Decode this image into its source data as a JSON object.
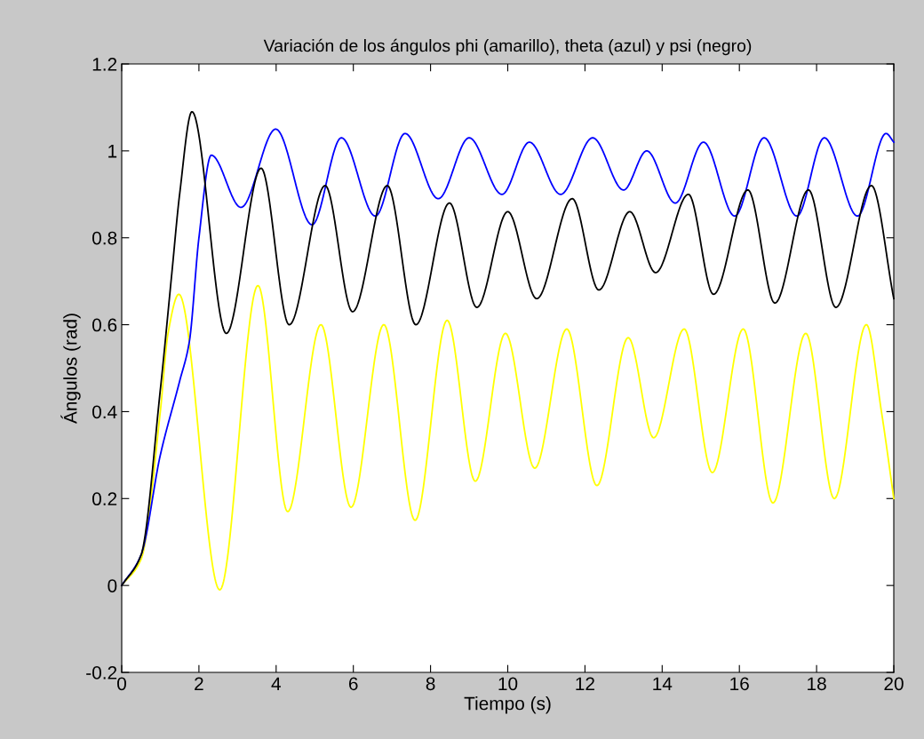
{
  "chart_data": {
    "type": "line",
    "title": "Variación de los ángulos phi (amarillo), theta (azul) y psi (negro)",
    "xlabel": "Tiempo (s)",
    "ylabel": "Ángulos (rad)",
    "xlim": [
      0,
      20
    ],
    "ylim": [
      -0.2,
      1.2
    ],
    "xticks": [
      0,
      2,
      4,
      6,
      8,
      10,
      12,
      14,
      16,
      18,
      20
    ],
    "yticks": [
      -0.2,
      0,
      0.2,
      0.4,
      0.6,
      0.8,
      1,
      1.2
    ],
    "grid": false,
    "legend": false,
    "marker": "none",
    "line_style": "solid",
    "series": [
      {
        "color": "#ffff00",
        "x": [
          0,
          0.5,
          1.0,
          1.2,
          1.48,
          2.54,
          3.53,
          4.3,
          5.16,
          5.94,
          6.79,
          7.6,
          8.43,
          9.16,
          9.94,
          10.7,
          11.53,
          12.31,
          13.12,
          13.78,
          14.57,
          15.3,
          16.1,
          16.87,
          17.72,
          18.46,
          19.29,
          19.68,
          20
        ],
        "values": [
          0,
          0.06,
          0.4,
          0.58,
          0.67,
          -0.01,
          0.69,
          0.17,
          0.6,
          0.18,
          0.6,
          0.15,
          0.61,
          0.24,
          0.58,
          0.27,
          0.59,
          0.23,
          0.57,
          0.34,
          0.59,
          0.26,
          0.59,
          0.19,
          0.58,
          0.2,
          0.6,
          0.4,
          0.2
        ]
      },
      {
        "color": "#0000ff",
        "x": [
          0,
          0.5,
          1.0,
          1.5,
          1.75,
          2.0,
          2.32,
          3.09,
          3.99,
          4.93,
          5.69,
          6.57,
          7.34,
          8.2,
          9.0,
          9.85,
          10.56,
          11.37,
          12.2,
          13.0,
          13.6,
          14.34,
          15.07,
          15.88,
          16.64,
          17.49,
          18.2,
          19.06,
          19.8,
          20
        ],
        "values": [
          0,
          0.07,
          0.3,
          0.47,
          0.56,
          0.8,
          0.99,
          0.87,
          1.05,
          0.83,
          1.03,
          0.85,
          1.04,
          0.89,
          1.03,
          0.9,
          1.02,
          0.9,
          1.03,
          0.91,
          1.0,
          0.88,
          1.02,
          0.85,
          1.03,
          0.85,
          1.03,
          0.85,
          1.04,
          1.02
        ]
      },
      {
        "color": "#000000",
        "x": [
          0,
          0.5,
          1.0,
          1.3,
          1.5,
          1.82,
          2.71,
          3.61,
          4.34,
          5.27,
          5.98,
          6.88,
          7.62,
          8.49,
          9.2,
          10.0,
          10.75,
          11.67,
          12.36,
          13.16,
          13.83,
          14.68,
          15.33,
          16.22,
          16.92,
          17.79,
          18.5,
          19.42,
          20
        ],
        "values": [
          0,
          0.07,
          0.45,
          0.72,
          0.9,
          1.09,
          0.58,
          0.96,
          0.6,
          0.92,
          0.63,
          0.92,
          0.6,
          0.88,
          0.64,
          0.86,
          0.66,
          0.89,
          0.68,
          0.86,
          0.72,
          0.9,
          0.67,
          0.91,
          0.65,
          0.91,
          0.64,
          0.92,
          0.66
        ]
      }
    ]
  }
}
